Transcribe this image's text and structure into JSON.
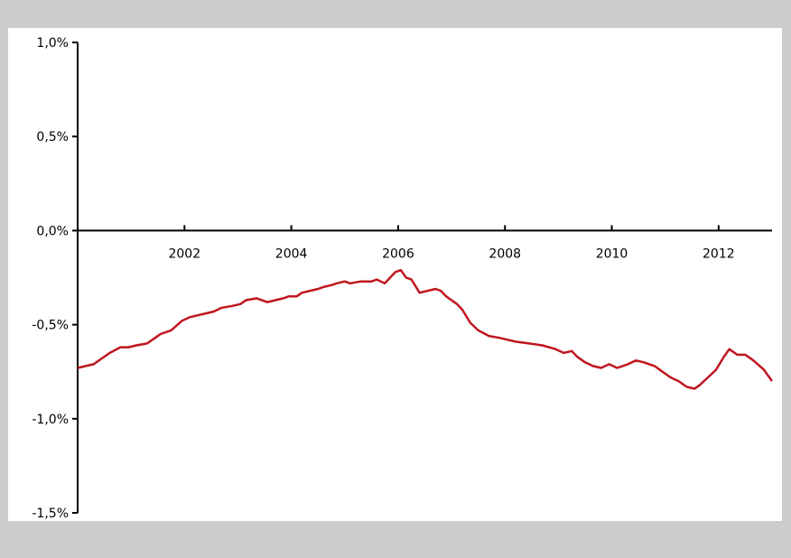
{
  "colors": {
    "frame": "#cccccc",
    "panel": "#ffffff",
    "axis": "#000000",
    "line": "#c0161f"
  },
  "chart_data": {
    "type": "line",
    "title": "",
    "xlabel": "",
    "ylabel": "",
    "ylim": [
      -0.015,
      0.01
    ],
    "xlim": [
      2000.0,
      2013.0
    ],
    "grid": false,
    "y_ticks": [
      {
        "value": 0.01,
        "label": "1,0%"
      },
      {
        "value": 0.005,
        "label": "0,5%"
      },
      {
        "value": 0.0,
        "label": "0,0%"
      },
      {
        "value": -0.005,
        "label": "-0,5%"
      },
      {
        "value": -0.01,
        "label": "-1,0%"
      },
      {
        "value": -0.015,
        "label": "-1,5%"
      }
    ],
    "x_ticks": [
      {
        "value": 2002,
        "label": "2002"
      },
      {
        "value": 2004,
        "label": "2004"
      },
      {
        "value": 2006,
        "label": "2006"
      },
      {
        "value": 2008,
        "label": "2008"
      },
      {
        "value": 2010,
        "label": "2010"
      },
      {
        "value": 2012,
        "label": "2012"
      }
    ],
    "series": [
      {
        "color": "#c0161f",
        "x": [
          2000.0,
          2000.15,
          2000.3,
          2000.45,
          2000.6,
          2000.8,
          2000.95,
          2001.1,
          2001.3,
          2001.45,
          2001.55,
          2001.75,
          2001.95,
          2002.1,
          2002.25,
          2002.4,
          2002.55,
          2002.7,
          2002.9,
          2003.05,
          2003.15,
          2003.35,
          2003.55,
          2003.7,
          2003.85,
          2003.95,
          2004.1,
          2004.2,
          2004.35,
          2004.5,
          2004.6,
          2004.75,
          2004.85,
          2005.0,
          2005.1,
          2005.3,
          2005.5,
          2005.6,
          2005.75,
          2005.85,
          2005.95,
          2006.05,
          2006.15,
          2006.25,
          2006.4,
          2006.55,
          2006.7,
          2006.8,
          2006.9,
          2007.0,
          2007.1,
          2007.2,
          2007.35,
          2007.5,
          2007.7,
          2007.9,
          2008.05,
          2008.2,
          2008.45,
          2008.7,
          2008.95,
          2009.1,
          2009.25,
          2009.35,
          2009.5,
          2009.65,
          2009.8,
          2009.95,
          2010.1,
          2010.3,
          2010.45,
          2010.6,
          2010.8,
          2010.95,
          2011.1,
          2011.25,
          2011.4,
          2011.55,
          2011.65,
          2011.8,
          2011.95,
          2012.1,
          2012.2,
          2012.35,
          2012.5,
          2012.65,
          2012.85,
          2013.0
        ],
        "y": [
          -0.0073,
          -0.0072,
          -0.0071,
          -0.0068,
          -0.0065,
          -0.0062,
          -0.0062,
          -0.0061,
          -0.006,
          -0.0057,
          -0.0055,
          -0.0053,
          -0.0048,
          -0.0046,
          -0.0045,
          -0.0044,
          -0.0043,
          -0.0041,
          -0.004,
          -0.0039,
          -0.0037,
          -0.0036,
          -0.0038,
          -0.0037,
          -0.0036,
          -0.0035,
          -0.0035,
          -0.0033,
          -0.0032,
          -0.0031,
          -0.003,
          -0.0029,
          -0.0028,
          -0.0027,
          -0.0028,
          -0.0027,
          -0.0027,
          -0.0026,
          -0.0028,
          -0.0025,
          -0.0022,
          -0.0021,
          -0.0025,
          -0.0026,
          -0.0033,
          -0.0032,
          -0.0031,
          -0.0032,
          -0.0035,
          -0.0037,
          -0.0039,
          -0.0042,
          -0.0049,
          -0.0053,
          -0.0056,
          -0.0057,
          -0.0058,
          -0.0059,
          -0.006,
          -0.0061,
          -0.0063,
          -0.0065,
          -0.0064,
          -0.0067,
          -0.007,
          -0.0072,
          -0.0073,
          -0.0071,
          -0.0073,
          -0.0071,
          -0.0069,
          -0.007,
          -0.0072,
          -0.0075,
          -0.0078,
          -0.008,
          -0.0083,
          -0.0084,
          -0.0082,
          -0.0078,
          -0.0074,
          -0.0067,
          -0.0063,
          -0.0066,
          -0.0066,
          -0.0069,
          -0.0074,
          -0.008
        ]
      }
    ]
  }
}
